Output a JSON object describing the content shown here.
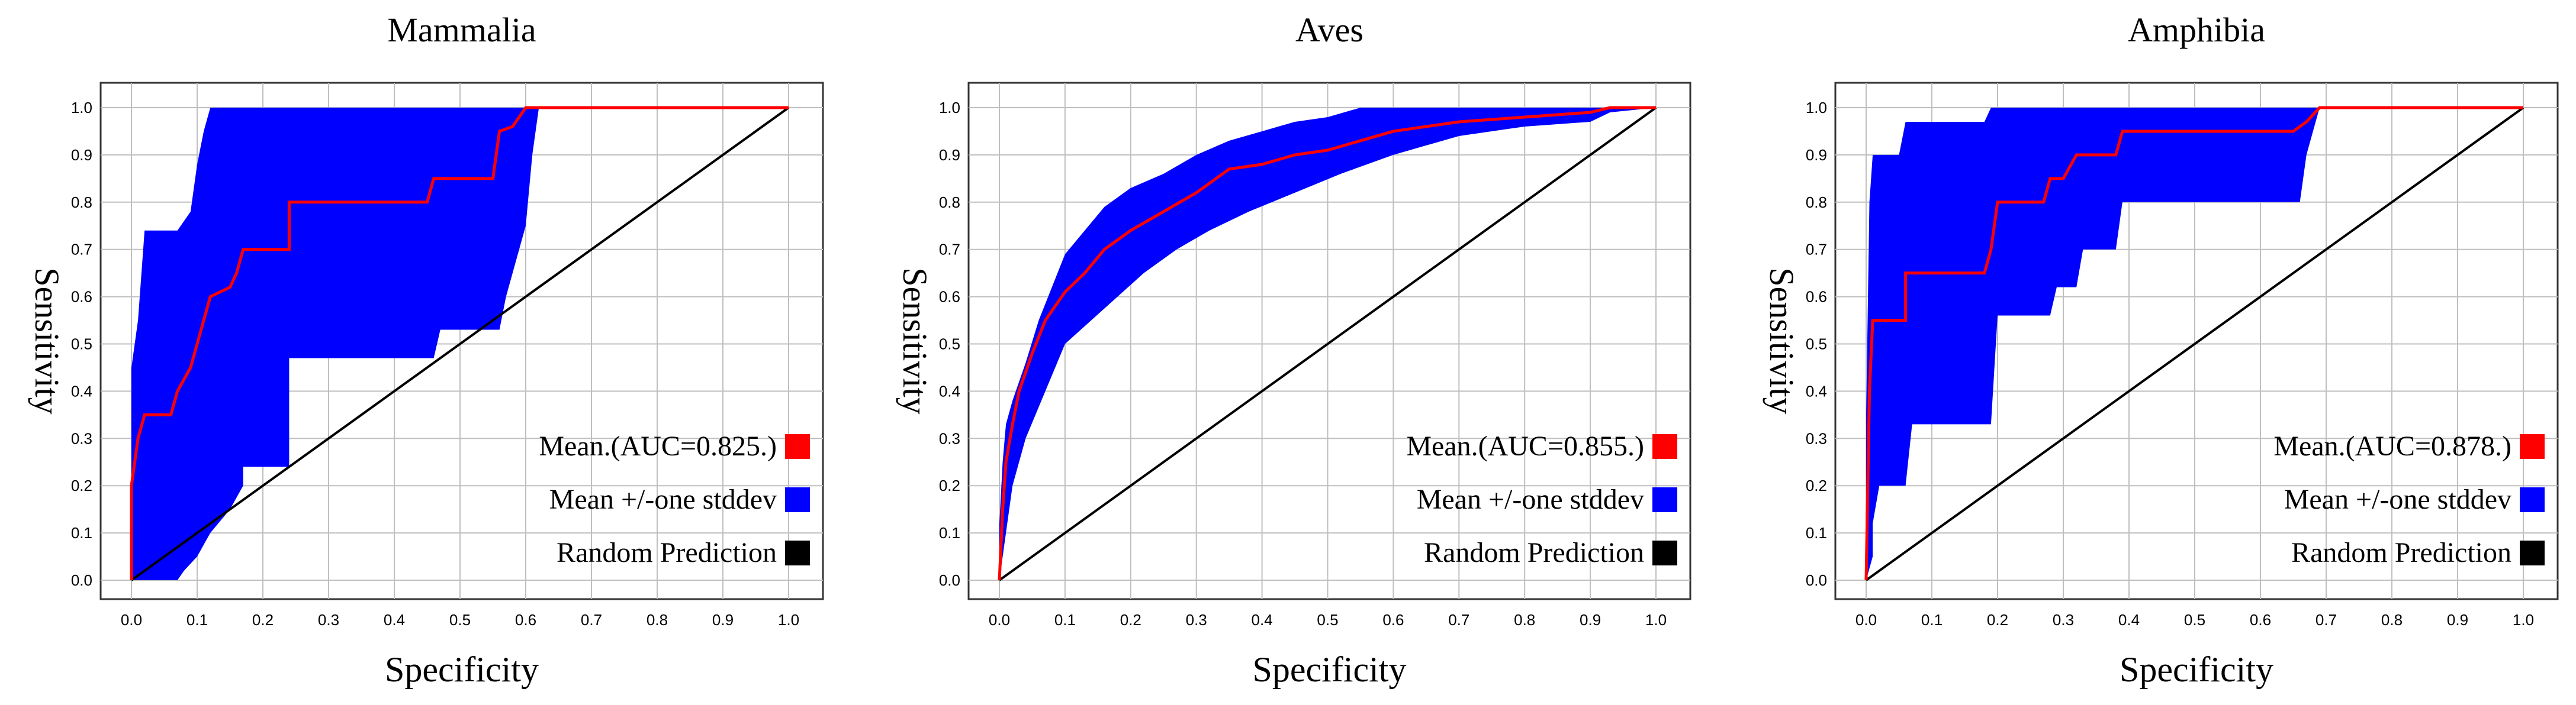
{
  "chart_data": [
    {
      "type": "line",
      "title": "Mammalia",
      "xlabel": "Specificity",
      "ylabel": "Sensitivity",
      "xlim": [
        0,
        1
      ],
      "ylim": [
        0,
        1
      ],
      "xticks": [
        "0.0",
        "0.1",
        "0.2",
        "0.3",
        "0.4",
        "0.5",
        "0.6",
        "0.7",
        "0.8",
        "0.9",
        "1.0"
      ],
      "yticks": [
        "0.0",
        "0.1",
        "0.2",
        "0.3",
        "0.4",
        "0.5",
        "0.6",
        "0.7",
        "0.8",
        "0.9",
        "1.0"
      ],
      "grid": true,
      "legend_position": "bottom-right",
      "legend": [
        {
          "label": "Mean.(AUC=0.825.)",
          "color": "#ff0000"
        },
        {
          "label": "Mean +/-one stddev",
          "color": "#0000ff"
        },
        {
          "label": "Random Prediction",
          "color": "#000000"
        }
      ],
      "series": [
        {
          "name": "Mean.(AUC=0.825.)",
          "color": "#ff0000",
          "points": [
            [
              0,
              0
            ],
            [
              0,
              0.2
            ],
            [
              0.01,
              0.3
            ],
            [
              0.02,
              0.35
            ],
            [
              0.06,
              0.35
            ],
            [
              0.07,
              0.4
            ],
            [
              0.09,
              0.45
            ],
            [
              0.1,
              0.5
            ],
            [
              0.11,
              0.55
            ],
            [
              0.12,
              0.6
            ],
            [
              0.15,
              0.62
            ],
            [
              0.16,
              0.65
            ],
            [
              0.17,
              0.7
            ],
            [
              0.24,
              0.7
            ],
            [
              0.24,
              0.8
            ],
            [
              0.45,
              0.8
            ],
            [
              0.46,
              0.85
            ],
            [
              0.55,
              0.85
            ],
            [
              0.56,
              0.95
            ],
            [
              0.58,
              0.96
            ],
            [
              0.6,
              1.0
            ],
            [
              1.0,
              1.0
            ]
          ]
        },
        {
          "name": "Mean +/-one stddev (upper)",
          "color": "#0000ff",
          "points": [
            [
              0,
              0.45
            ],
            [
              0.01,
              0.55
            ],
            [
              0.02,
              0.74
            ],
            [
              0.07,
              0.74
            ],
            [
              0.09,
              0.78
            ],
            [
              0.1,
              0.88
            ],
            [
              0.11,
              0.95
            ],
            [
              0.12,
              1.0
            ],
            [
              1.0,
              1.0
            ]
          ]
        },
        {
          "name": "Mean +/-one stddev (lower)",
          "color": "#0000ff",
          "points": [
            [
              0,
              0
            ],
            [
              0.07,
              0
            ],
            [
              0.08,
              0.02
            ],
            [
              0.1,
              0.05
            ],
            [
              0.12,
              0.1
            ],
            [
              0.15,
              0.15
            ],
            [
              0.17,
              0.2
            ],
            [
              0.17,
              0.24
            ],
            [
              0.24,
              0.24
            ],
            [
              0.24,
              0.47
            ],
            [
              0.46,
              0.47
            ],
            [
              0.47,
              0.53
            ],
            [
              0.56,
              0.53
            ],
            [
              0.57,
              0.6
            ],
            [
              0.6,
              0.75
            ],
            [
              0.61,
              0.9
            ],
            [
              0.62,
              1.0
            ],
            [
              1.0,
              1.0
            ]
          ]
        },
        {
          "name": "Random Prediction",
          "color": "#000000",
          "points": [
            [
              0,
              0
            ],
            [
              1,
              1
            ]
          ]
        }
      ]
    },
    {
      "type": "line",
      "title": "Aves",
      "xlabel": "Specificity",
      "ylabel": "Sensitivity",
      "xlim": [
        0,
        1
      ],
      "ylim": [
        0,
        1
      ],
      "xticks": [
        "0.0",
        "0.1",
        "0.2",
        "0.3",
        "0.4",
        "0.5",
        "0.6",
        "0.7",
        "0.8",
        "0.9",
        "1.0"
      ],
      "yticks": [
        "0.0",
        "0.1",
        "0.2",
        "0.3",
        "0.4",
        "0.5",
        "0.6",
        "0.7",
        "0.8",
        "0.9",
        "1.0"
      ],
      "grid": true,
      "legend_position": "bottom-right",
      "legend": [
        {
          "label": "Mean.(AUC=0.855.)",
          "color": "#ff0000"
        },
        {
          "label": "Mean +/-one stddev",
          "color": "#0000ff"
        },
        {
          "label": "Random Prediction",
          "color": "#000000"
        }
      ],
      "series": [
        {
          "name": "Mean.(AUC=0.855.)",
          "color": "#ff0000",
          "points": [
            [
              0,
              0
            ],
            [
              0.005,
              0.15
            ],
            [
              0.01,
              0.25
            ],
            [
              0.02,
              0.33
            ],
            [
              0.03,
              0.4
            ],
            [
              0.05,
              0.48
            ],
            [
              0.07,
              0.55
            ],
            [
              0.1,
              0.61
            ],
            [
              0.13,
              0.65
            ],
            [
              0.16,
              0.7
            ],
            [
              0.2,
              0.74
            ],
            [
              0.25,
              0.78
            ],
            [
              0.3,
              0.82
            ],
            [
              0.35,
              0.87
            ],
            [
              0.4,
              0.88
            ],
            [
              0.45,
              0.9
            ],
            [
              0.5,
              0.91
            ],
            [
              0.55,
              0.93
            ],
            [
              0.6,
              0.95
            ],
            [
              0.7,
              0.97
            ],
            [
              0.8,
              0.98
            ],
            [
              0.9,
              0.99
            ],
            [
              0.93,
              1.0
            ],
            [
              1.0,
              1.0
            ]
          ]
        },
        {
          "name": "Mean +/-one stddev (upper)",
          "color": "#0000ff",
          "points": [
            [
              0,
              0.12
            ],
            [
              0.005,
              0.25
            ],
            [
              0.01,
              0.33
            ],
            [
              0.02,
              0.38
            ],
            [
              0.04,
              0.46
            ],
            [
              0.06,
              0.55
            ],
            [
              0.08,
              0.62
            ],
            [
              0.1,
              0.69
            ],
            [
              0.13,
              0.74
            ],
            [
              0.16,
              0.79
            ],
            [
              0.2,
              0.83
            ],
            [
              0.25,
              0.86
            ],
            [
              0.3,
              0.9
            ],
            [
              0.35,
              0.93
            ],
            [
              0.4,
              0.95
            ],
            [
              0.45,
              0.97
            ],
            [
              0.5,
              0.98
            ],
            [
              0.55,
              1.0
            ],
            [
              1.0,
              1.0
            ]
          ]
        },
        {
          "name": "Mean +/-one stddev (lower)",
          "color": "#0000ff",
          "points": [
            [
              0,
              0
            ],
            [
              0.01,
              0.1
            ],
            [
              0.02,
              0.2
            ],
            [
              0.04,
              0.3
            ],
            [
              0.07,
              0.4
            ],
            [
              0.1,
              0.5
            ],
            [
              0.14,
              0.55
            ],
            [
              0.18,
              0.6
            ],
            [
              0.22,
              0.65
            ],
            [
              0.27,
              0.7
            ],
            [
              0.32,
              0.74
            ],
            [
              0.38,
              0.78
            ],
            [
              0.45,
              0.82
            ],
            [
              0.52,
              0.86
            ],
            [
              0.6,
              0.9
            ],
            [
              0.7,
              0.94
            ],
            [
              0.8,
              0.96
            ],
            [
              0.9,
              0.97
            ],
            [
              0.93,
              0.99
            ],
            [
              1.0,
              1.0
            ]
          ]
        },
        {
          "name": "Random Prediction",
          "color": "#000000",
          "points": [
            [
              0,
              0
            ],
            [
              1,
              1
            ]
          ]
        }
      ]
    },
    {
      "type": "line",
      "title": "Amphibia",
      "xlabel": "Specificity",
      "ylabel": "Sensitivity",
      "xlim": [
        0,
        1
      ],
      "ylim": [
        0,
        1
      ],
      "xticks": [
        "0.0",
        "0.1",
        "0.2",
        "0.3",
        "0.4",
        "0.5",
        "0.6",
        "0.7",
        "0.8",
        "0.9",
        "1.0"
      ],
      "yticks": [
        "0.0",
        "0.1",
        "0.2",
        "0.3",
        "0.4",
        "0.5",
        "0.6",
        "0.7",
        "0.8",
        "0.9",
        "1.0"
      ],
      "grid": true,
      "legend_position": "bottom-right",
      "legend": [
        {
          "label": "Mean.(AUC=0.878.)",
          "color": "#ff0000"
        },
        {
          "label": "Mean +/-one stddev",
          "color": "#0000ff"
        },
        {
          "label": "Random Prediction",
          "color": "#000000"
        }
      ],
      "series": [
        {
          "name": "Mean.(AUC=0.878.)",
          "color": "#ff0000",
          "points": [
            [
              0,
              0
            ],
            [
              0.005,
              0.4
            ],
            [
              0.01,
              0.55
            ],
            [
              0.06,
              0.55
            ],
            [
              0.06,
              0.65
            ],
            [
              0.18,
              0.65
            ],
            [
              0.19,
              0.7
            ],
            [
              0.2,
              0.8
            ],
            [
              0.27,
              0.8
            ],
            [
              0.28,
              0.85
            ],
            [
              0.3,
              0.85
            ],
            [
              0.32,
              0.9
            ],
            [
              0.38,
              0.9
            ],
            [
              0.39,
              0.95
            ],
            [
              0.65,
              0.95
            ],
            [
              0.67,
              0.97
            ],
            [
              0.69,
              1.0
            ],
            [
              1.0,
              1.0
            ]
          ]
        },
        {
          "name": "Mean +/-one stddev (upper)",
          "color": "#0000ff",
          "points": [
            [
              0,
              0.35
            ],
            [
              0.005,
              0.8
            ],
            [
              0.01,
              0.9
            ],
            [
              0.05,
              0.9
            ],
            [
              0.06,
              0.97
            ],
            [
              0.18,
              0.97
            ],
            [
              0.19,
              1.0
            ],
            [
              1.0,
              1.0
            ]
          ]
        },
        {
          "name": "Mean +/-one stddev (lower)",
          "color": "#0000ff",
          "points": [
            [
              0,
              0
            ],
            [
              0.01,
              0.05
            ],
            [
              0.01,
              0.12
            ],
            [
              0.02,
              0.2
            ],
            [
              0.06,
              0.2
            ],
            [
              0.07,
              0.33
            ],
            [
              0.19,
              0.33
            ],
            [
              0.2,
              0.56
            ],
            [
              0.28,
              0.56
            ],
            [
              0.29,
              0.62
            ],
            [
              0.32,
              0.62
            ],
            [
              0.33,
              0.7
            ],
            [
              0.38,
              0.7
            ],
            [
              0.39,
              0.8
            ],
            [
              0.66,
              0.8
            ],
            [
              0.67,
              0.9
            ],
            [
              0.69,
              1.0
            ],
            [
              1.0,
              1.0
            ]
          ]
        },
        {
          "name": "Random Prediction",
          "color": "#000000",
          "points": [
            [
              0,
              0
            ],
            [
              1,
              1
            ]
          ]
        }
      ]
    }
  ]
}
